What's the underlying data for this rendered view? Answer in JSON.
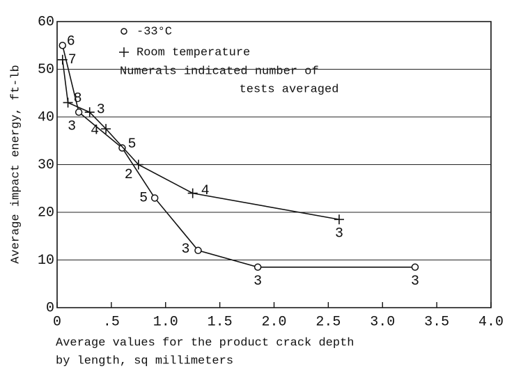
{
  "chart_data": {
    "type": "scatter",
    "x_label": [
      "Average values for the product crack depth",
      "by length, sq millimeters"
    ],
    "y_label": "Average impact energy, ft-lb",
    "annotation": [
      "Numerals indicated number of",
      "tests averaged"
    ],
    "xlim": [
      0,
      4
    ],
    "xticks": [
      0,
      {
        "value": 0.5,
        "label": ".5"
      },
      {
        "value": 1,
        "label": "1.0"
      },
      {
        "value": 1.5,
        "label": "1.5"
      },
      {
        "value": 2,
        "label": "2.0"
      },
      {
        "value": 2.5,
        "label": "2.5"
      },
      {
        "value": 3,
        "label": "3.0"
      },
      {
        "value": 3.5,
        "label": "3.5"
      },
      {
        "value": 4,
        "label": "4.0"
      }
    ],
    "ylim": [
      0,
      60
    ],
    "yticks": [
      0,
      10,
      20,
      30,
      40,
      50,
      60
    ],
    "grid": true,
    "series": [
      {
        "name": "-33°C",
        "marker": "circle",
        "color": "#111",
        "x": [
          0.05,
          0.2,
          0.6,
          0.9,
          1.3,
          1.85,
          3.3
        ],
        "values": [
          55,
          41,
          33.5,
          23,
          12,
          8.5,
          8.5
        ],
        "tests": [
          6,
          3,
          5,
          5,
          3,
          3,
          3
        ]
      },
      {
        "name": "Room temperature",
        "marker": "plus",
        "color": "#111",
        "x": [
          0.05,
          0.1,
          0.3,
          0.45,
          0.75,
          1.25,
          2.6
        ],
        "values": [
          52,
          43,
          41,
          37.5,
          30,
          24,
          18.5
        ],
        "tests": [
          7,
          8,
          3,
          4,
          2,
          4,
          3
        ]
      }
    ]
  }
}
